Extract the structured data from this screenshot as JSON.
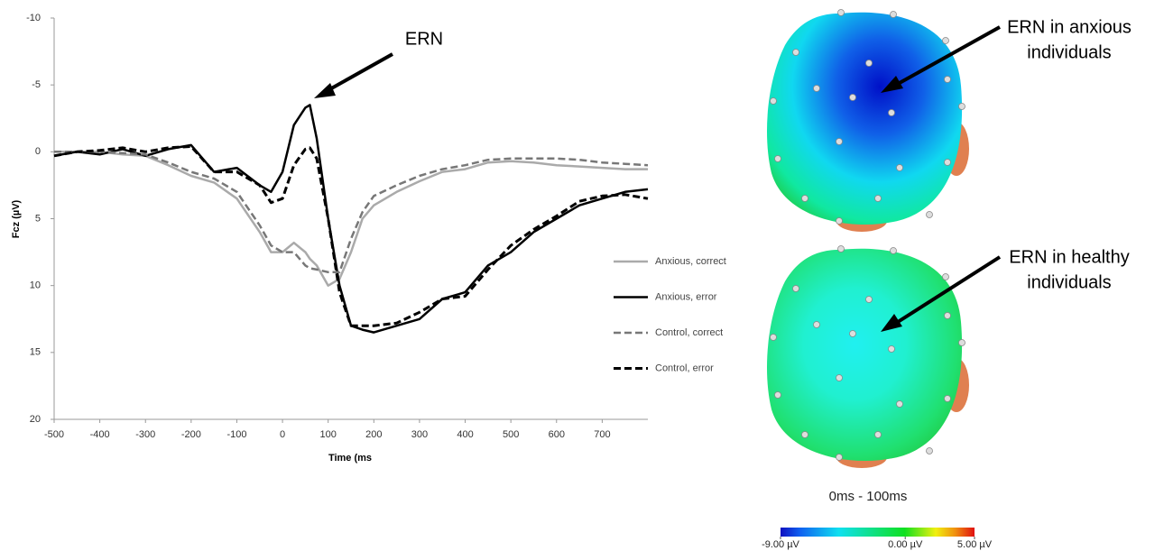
{
  "chart_data": {
    "type": "line",
    "x_label": "Time (ms",
    "y_label": "Fcz (µV)",
    "annotation": "ERN",
    "x": [
      -500,
      -450,
      -400,
      -350,
      -300,
      -250,
      -200,
      -150,
      -100,
      -50,
      -25,
      0,
      25,
      50,
      60,
      75,
      100,
      125,
      150,
      175,
      200,
      250,
      300,
      350,
      400,
      450,
      500,
      550,
      600,
      650,
      700,
      750,
      800
    ],
    "series": [
      {
        "name": "Anxious, correct",
        "color": "#aaaaaa",
        "dashed": false,
        "width": 2.5,
        "values": [
          0,
          0,
          0,
          0.2,
          0.3,
          1,
          1.8,
          2.3,
          3.5,
          6,
          7.5,
          7.5,
          6.8,
          7.5,
          8,
          8.5,
          10,
          9.5,
          7.5,
          5,
          4,
          3,
          2.2,
          1.5,
          1.3,
          0.8,
          0.7,
          0.8,
          1,
          1.1,
          1.2,
          1.3,
          1.3
        ]
      },
      {
        "name": "Anxious, error",
        "color": "#000000",
        "dashed": false,
        "width": 2.5,
        "values": [
          0.3,
          0,
          0.2,
          -0.2,
          0.3,
          -0.2,
          -0.5,
          1.5,
          1.2,
          2.5,
          3,
          1.5,
          -2,
          -3.3,
          -3.5,
          -1,
          5,
          10,
          13,
          13.3,
          13.5,
          13,
          12.5,
          11,
          10.5,
          8.5,
          7.5,
          6,
          5,
          4,
          3.5,
          3,
          2.8
        ]
      },
      {
        "name": "Control, correct",
        "color": "#777777",
        "dashed": true,
        "width": 2.5,
        "values": [
          0,
          0,
          0,
          0.1,
          0.2,
          0.8,
          1.5,
          2,
          3,
          5.5,
          7,
          7.5,
          7.5,
          8.5,
          8.7,
          8.8,
          9,
          9,
          6.5,
          4.5,
          3.3,
          2.5,
          1.8,
          1.3,
          1,
          0.6,
          0.5,
          0.5,
          0.5,
          0.6,
          0.8,
          0.9,
          1
        ]
      },
      {
        "name": "Control, error",
        "color": "#000000",
        "dashed": true,
        "width": 3,
        "values": [
          0.3,
          0,
          -0.1,
          -0.3,
          0,
          -0.3,
          -0.4,
          1.5,
          1.5,
          2.5,
          3.8,
          3.5,
          1,
          -0.2,
          -0.3,
          0.5,
          5,
          10.5,
          13,
          13,
          13,
          12.8,
          12,
          11,
          10.8,
          8.8,
          7,
          5.8,
          4.8,
          3.7,
          3.3,
          3.2,
          3.5
        ]
      }
    ],
    "xlim": [
      -500,
      800
    ],
    "xticks": [
      -500,
      -400,
      -300,
      -200,
      -100,
      0,
      100,
      200,
      300,
      400,
      500,
      600,
      700
    ],
    "ylim": [
      20,
      -10
    ],
    "yticks": [
      -10,
      -5,
      0,
      5,
      10,
      15,
      20
    ],
    "grid": false,
    "legend": "right"
  },
  "scalp_maps": {
    "maps": [
      {
        "label_lines": [
          "ERN in anxious",
          "individuals"
        ]
      },
      {
        "label_lines": [
          "ERN in healthy",
          "individuals"
        ]
      }
    ],
    "time_window": "0ms - 100ms",
    "colorbar": {
      "lim": [
        -9,
        5
      ],
      "ticks": [
        {
          "value": -9,
          "label": "-9.00 µV"
        },
        {
          "value": 0,
          "label": "0.00 µV"
        },
        {
          "value": 5,
          "label": "5.00 µV"
        }
      ]
    }
  }
}
